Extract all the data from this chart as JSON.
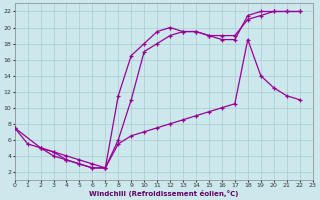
{
  "bg_color": "#cce8ec",
  "line_color": "#990099",
  "grid_color": "#aacccc",
  "xlabel": "Windchill (Refroidissement éolien,°C)",
  "xlim": [
    0,
    23
  ],
  "ylim": [
    1,
    23
  ],
  "xticks": [
    0,
    1,
    2,
    3,
    4,
    5,
    6,
    7,
    8,
    9,
    10,
    11,
    12,
    13,
    14,
    15,
    16,
    17,
    18,
    19,
    20,
    21,
    22,
    23
  ],
  "yticks": [
    2,
    4,
    6,
    8,
    10,
    12,
    14,
    16,
    18,
    20,
    22
  ],
  "line1_x": [
    0,
    1,
    2,
    3,
    4,
    5,
    6,
    7,
    8,
    9,
    10,
    11,
    12,
    13,
    14,
    15,
    16,
    17,
    18,
    19,
    20,
    21,
    22
  ],
  "line1_y": [
    7.5,
    5.5,
    5.0,
    4.5,
    4.0,
    3.5,
    3.0,
    2.5,
    11.5,
    16.5,
    18.0,
    19.5,
    20.0,
    19.5,
    19.5,
    19.0,
    19.0,
    19.0,
    21.0,
    21.5,
    22.0,
    22.0,
    22.0
  ],
  "line2_x": [
    0,
    2,
    3,
    4,
    5,
    6,
    7,
    8,
    9,
    10,
    11,
    12,
    13,
    14,
    15,
    16,
    17,
    18,
    19,
    20,
    21,
    22
  ],
  "line2_y": [
    7.5,
    5.0,
    4.5,
    3.5,
    3.0,
    2.5,
    2.5,
    6.0,
    11.0,
    17.0,
    18.0,
    19.0,
    19.5,
    19.5,
    19.0,
    18.5,
    18.5,
    21.5,
    22.0,
    22.0,
    22.0,
    22.0
  ],
  "line3_x": [
    2,
    3,
    4,
    5,
    6,
    7,
    8,
    9,
    10,
    11,
    12,
    13,
    14,
    15,
    16,
    17,
    18,
    19,
    20,
    21,
    22
  ],
  "line3_y": [
    5.0,
    4.0,
    3.5,
    3.0,
    2.5,
    2.5,
    5.5,
    6.5,
    7.0,
    7.5,
    8.0,
    8.5,
    9.0,
    9.5,
    10.0,
    10.5,
    18.5,
    14.0,
    12.5,
    11.5,
    11.0
  ]
}
